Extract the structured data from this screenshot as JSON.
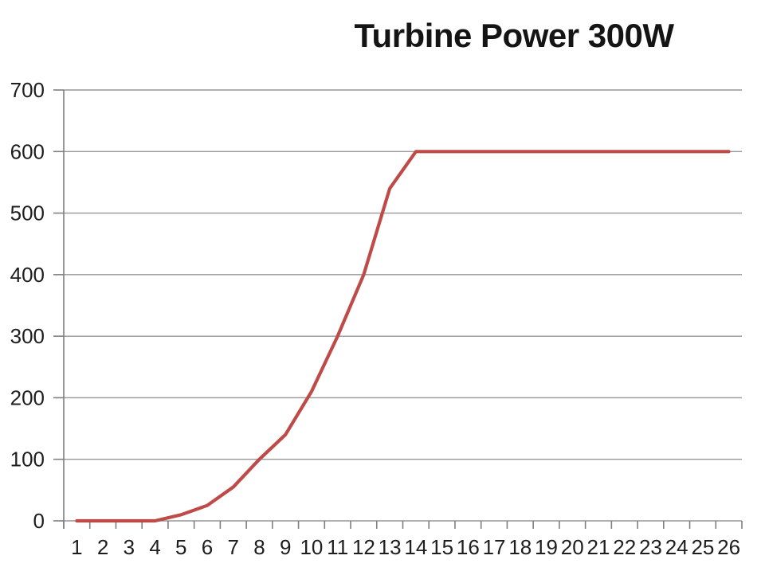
{
  "chart_data": {
    "type": "line",
    "title": "Turbine Power 300W",
    "categories": [
      "1",
      "2",
      "3",
      "4",
      "5",
      "6",
      "7",
      "8",
      "9",
      "10",
      "11",
      "12",
      "13",
      "14",
      "15",
      "16",
      "17",
      "18",
      "19",
      "20",
      "21",
      "22",
      "23",
      "24",
      "25",
      "26"
    ],
    "series": [
      {
        "name": "Turbine Power",
        "values": [
          0,
          0,
          0,
          0,
          10,
          25,
          55,
          100,
          140,
          210,
          300,
          400,
          540,
          600,
          600,
          600,
          600,
          600,
          600,
          600,
          600,
          600,
          600,
          600,
          600,
          600
        ]
      }
    ],
    "xlabel": "",
    "ylabel": "",
    "ylim": [
      0,
      700
    ],
    "yticks": [
      0,
      100,
      200,
      300,
      400,
      500,
      600,
      700
    ],
    "grid": "horizontal",
    "legend": "none"
  },
  "style": {
    "series_color": "#be4b48",
    "gridline_color": "#969696",
    "axis_color": "#7f7f7f",
    "tick_label_color": "#1e1e1e",
    "title_color": "#141414",
    "background": "#ffffff"
  }
}
